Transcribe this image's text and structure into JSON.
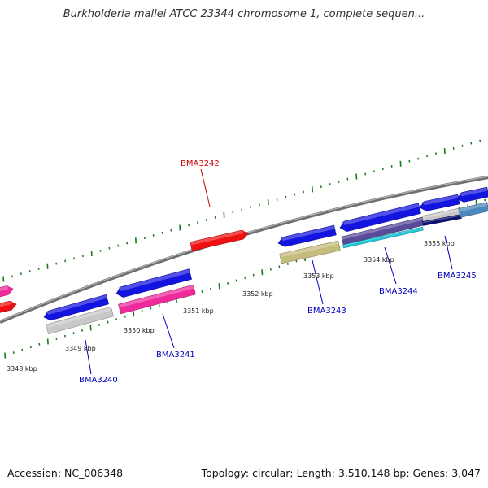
{
  "title": "Burkholderia mallei ATCC 23344 chromosome 1, complete sequen...",
  "footer": {
    "accession": "Accession: NC_006348",
    "stats": "Topology: circular; Length: 3,510,148 bp; Genes: 3,047"
  },
  "colors": {
    "backbone": "#8a8a8a",
    "tick_green": "#1a7a1a",
    "label_forward": "#cc0000",
    "label_reverse": "#0000bb",
    "gene_blue": "#1414e0",
    "gene_red": "#ee1111",
    "gene_pink": "#ee2a9c",
    "gene_gray": "#c8c8c8",
    "gene_olive": "#c4bc7a",
    "gene_purple": "#5a4a9a",
    "gene_cyan": "#22c8d8",
    "gene_navy": "#0c1270",
    "gene_steel": "#4a88c0"
  },
  "kbp_labels": [
    "3348 kbp",
    "3349 kbp",
    "3350 kbp",
    "3351 kbp",
    "3352 kbp",
    "3353 kbp",
    "3354 kbp",
    "3355 kbp"
  ],
  "gene_labels": [
    {
      "text": "BMA3242",
      "strand": "forward"
    },
    {
      "text": "BMA3240",
      "strand": "reverse"
    },
    {
      "text": "BMA3241",
      "strand": "reverse"
    },
    {
      "text": "BMA3243",
      "strand": "reverse"
    },
    {
      "text": "BMA3244",
      "strand": "reverse"
    },
    {
      "text": "BMA3245",
      "strand": "reverse"
    }
  ]
}
